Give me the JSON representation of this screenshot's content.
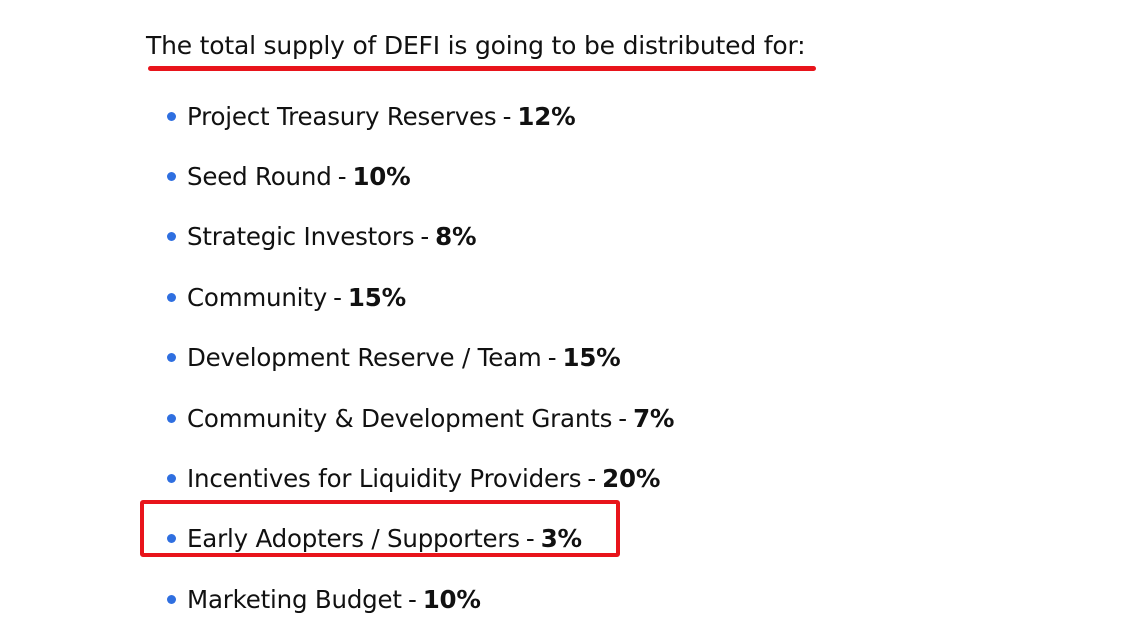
{
  "heading": "The total supply of DEFI is going to be distributed for:",
  "distribution": [
    {
      "label": "Project Treasury Reserves",
      "separator": "-",
      "percent": "12%"
    },
    {
      "label": "Seed Round",
      "separator": "-",
      "percent": "10%"
    },
    {
      "label": "Strategic Investors",
      "separator": "-",
      "percent": "8%"
    },
    {
      "label": "Community",
      "separator": "-",
      "percent": "15%"
    },
    {
      "label": "Development Reserve / Team",
      "separator": "-",
      "percent": "15%"
    },
    {
      "label": "Community & Development Grants",
      "separator": "-",
      "percent": "7%"
    },
    {
      "label": "Incentives for Liquidity Providers",
      "separator": "-",
      "percent": "20%"
    },
    {
      "label": "Early Adopters / Supporters",
      "separator": "-",
      "percent": "3%"
    },
    {
      "label": "Marketing Budget",
      "separator": "-",
      "percent": "10%"
    }
  ],
  "highlighted_item": "Early Adopters / Supporters",
  "colors": {
    "annotation": "#e8141b",
    "bullet": "#2f6fe0",
    "text": "#111111",
    "background": "#ffffff"
  }
}
